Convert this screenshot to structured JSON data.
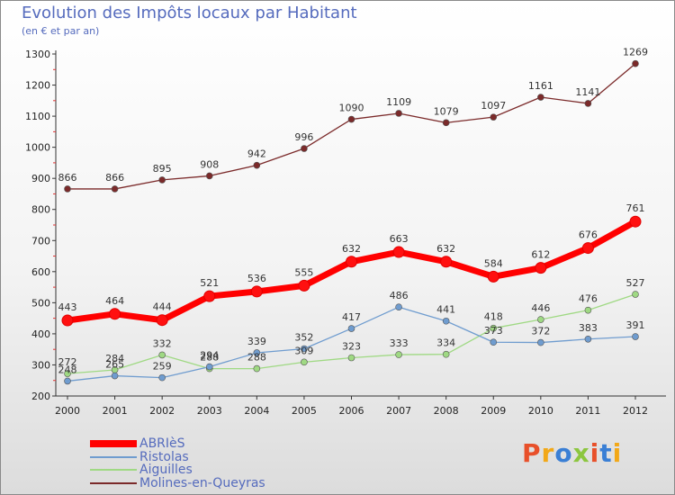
{
  "header": {
    "title": "Evolution des Impôts locaux par Habitant",
    "subtitle": "(en € et par an)"
  },
  "logo": {
    "text": "Proxiti",
    "colors": [
      "#e8502a",
      "#f2a818",
      "#3a7fd5",
      "#8cc63f",
      "#e8502a",
      "#3a7fd5",
      "#f2a818"
    ]
  },
  "chart_data": {
    "type": "line",
    "x": [
      "2000",
      "2001",
      "2002",
      "2003",
      "2004",
      "2005",
      "2006",
      "2007",
      "2008",
      "2009",
      "2010",
      "2011",
      "2012"
    ],
    "ylim": [
      200,
      1300
    ],
    "yticks": [
      "200",
      "300",
      "400",
      "500",
      "600",
      "700",
      "800",
      "900",
      "1000",
      "1100",
      "1200",
      "1300"
    ],
    "grid": false,
    "legend_position": "bottom-left",
    "series": [
      {
        "name": "ABRIèS",
        "color": "#ff0000",
        "values": [
          443,
          464,
          444,
          521,
          536,
          555,
          632,
          663,
          632,
          584,
          612,
          676,
          761
        ]
      },
      {
        "name": "Ristolas",
        "color": "#6f9ccf",
        "values": [
          248,
          265,
          259,
          294,
          339,
          352,
          417,
          486,
          441,
          373,
          372,
          383,
          391
        ]
      },
      {
        "name": "Aiguilles",
        "color": "#9fd983",
        "values": [
          272,
          284,
          332,
          288,
          288,
          309,
          323,
          333,
          334,
          418,
          446,
          476,
          527
        ]
      },
      {
        "name": "Molines-en-Queyras",
        "color": "#7b2a2a",
        "values": [
          866,
          866,
          895,
          908,
          942,
          996,
          1090,
          1109,
          1079,
          1097,
          1161,
          1141,
          1269
        ]
      }
    ]
  }
}
